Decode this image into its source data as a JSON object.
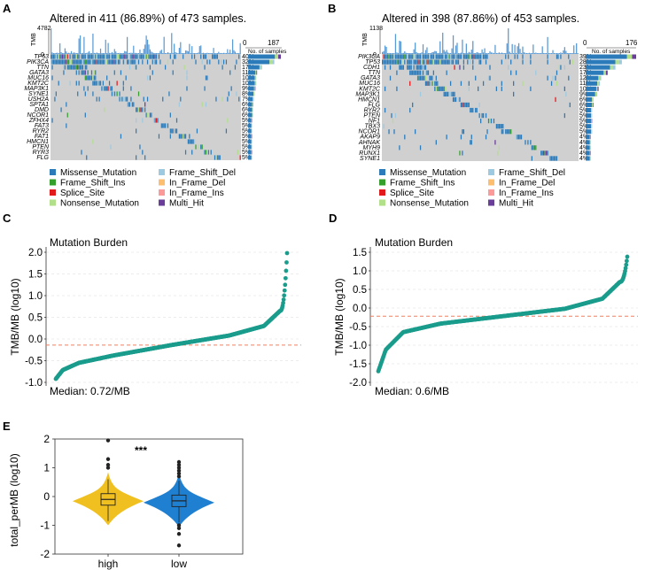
{
  "panels": {
    "A": {
      "label": "A",
      "title": "Altered in 411 (86.89%) of 473 samples.",
      "tmb_label": "TMB",
      "tmb_max": "4782",
      "tmb_min": "0",
      "bar_axis_min": "0",
      "bar_axis_max": "187",
      "bar_axis_label": "No. of samples",
      "genes": [
        "TP53",
        "PIK3CA",
        "TTN",
        "GATA3",
        "MUC16",
        "KMT2C",
        "MAP3K1",
        "SYNE1",
        "USH2A",
        "SPTA1",
        "DMD",
        "NCOR1",
        "ZFHX4",
        "FAT3",
        "RYR2",
        "FAT1",
        "HMCN1",
        "PTEN",
        "RYR3",
        "FLG"
      ],
      "gene_percent": [
        "40%",
        "32%",
        "17%",
        "11%",
        "10%",
        "10%",
        "9%",
        "8%",
        "7%",
        "6%",
        "6%",
        "6%",
        "5%",
        "5%",
        "5%",
        "5%",
        "5%",
        "5%",
        "5%",
        "5%"
      ],
      "legend": [
        "Missense_Mutation",
        "Frame_Shift_Del",
        "Frame_Shift_Ins",
        "In_Frame_Del",
        "Splice_Site",
        "In_Frame_Ins",
        "Nonsense_Mutation",
        "Multi_Hit"
      ]
    },
    "B": {
      "label": "B",
      "title": "Altered in 398 (87.86%) of 453 samples.",
      "tmb_label": "TMB",
      "tmb_max": "1138",
      "tmb_min": "0",
      "bar_axis_min": "0",
      "bar_axis_max": "176",
      "bar_axis_label": "No. of samples",
      "genes": [
        "PIK3CA",
        "TP53",
        "CDH1",
        "TTN",
        "GATA3",
        "MUC16",
        "KMT2C",
        "MAP3K1",
        "HMCN1",
        "FLG",
        "RYR2",
        "PTEN",
        "NF1",
        "TBX3",
        "NCOR1",
        "AKAP9",
        "AHNAK",
        "MYH9",
        "RUNX1",
        "SYNE1"
      ],
      "gene_percent": [
        "39%",
        "28%",
        "23%",
        "17%",
        "12%",
        "11%",
        "10%",
        "9%",
        "6%",
        "6%",
        "5%",
        "5%",
        "5%",
        "5%",
        "5%",
        "4%",
        "4%",
        "4%",
        "4%",
        "4%"
      ],
      "legend": [
        "Missense_Mutation",
        "Frame_Shift_Del",
        "Frame_Shift_Ins",
        "In_Frame_Del",
        "Splice_Site",
        "In_Frame_Ins",
        "Nonsense_Mutation",
        "Multi_Hit"
      ]
    },
    "C": {
      "label": "C",
      "subtitle": "Mutation Burden",
      "ylabel": "TMB/MB (log10)",
      "median_text": "Median: 0.72/MB"
    },
    "D": {
      "label": "D",
      "subtitle": "Mutation Burden",
      "ylabel": "TMB/MB (log10)",
      "median_text": "Median: 0.6/MB"
    },
    "E": {
      "label": "E",
      "ylabel": "total_perMB (log10)",
      "significance": "***"
    }
  },
  "legend_colors": {
    "Missense_Mutation": "#2b7bba",
    "Frame_Shift_Del": "#9ecae1",
    "Frame_Shift_Ins": "#33a02c",
    "In_Frame_Del": "#fdbf6f",
    "Splice_Site": "#e31a1c",
    "In_Frame_Ins": "#fb9a99",
    "Nonsense_Mutation": "#b2df8a",
    "Multi_Hit": "#6a3d9a"
  },
  "colors": {
    "scatter": "#1a9c8c",
    "median_line": "#f08060",
    "violin_high": "#f0c020",
    "violin_low": "#1f7fd0",
    "grid_bg": "#d0d0d0"
  },
  "chart_data": [
    {
      "type": "scatter",
      "id": "C",
      "title": "Mutation Burden",
      "xlabel": "",
      "ylabel": "TMB/MB (log10)",
      "ylim": [
        -1.0,
        2.0
      ],
      "yticks": [
        "2.0",
        "1.5",
        "1.0",
        "0.5",
        "0.0",
        "-0.5",
        "-1.0"
      ],
      "yticks_values": [
        2.0,
        1.5,
        1.0,
        0.5,
        0.0,
        -0.5,
        -1.0
      ],
      "median_log10": -0.14,
      "median_label": "Median: 0.72/MB",
      "n_points": 473,
      "sorted_profile": {
        "min": -0.92,
        "q10": -0.55,
        "q25": -0.38,
        "q50": -0.14,
        "q75": 0.08,
        "q90": 0.3,
        "q97": 0.65,
        "max": 1.98
      }
    },
    {
      "type": "scatter",
      "id": "D",
      "title": "Mutation Burden",
      "xlabel": "",
      "ylabel": "TMB/MB (log10)",
      "ylim": [
        -2.0,
        1.5
      ],
      "yticks": [
        "1.5",
        "1.0",
        "0.5",
        "0.0",
        "-0.5",
        "-1.0",
        "-1.5",
        "-2.0"
      ],
      "yticks_values": [
        1.5,
        1.0,
        0.5,
        0.0,
        -0.5,
        -1.0,
        -1.5,
        -2.0
      ],
      "median_log10": -0.22,
      "median_label": "Median: 0.6/MB",
      "n_points": 453,
      "sorted_profile": {
        "min": -1.7,
        "q10": -0.65,
        "q25": -0.42,
        "q50": -0.22,
        "q75": -0.02,
        "q90": 0.25,
        "q97": 0.7,
        "max": 1.38
      }
    },
    {
      "type": "violin",
      "id": "E",
      "ylabel": "total_perMB (log10)",
      "ylim": [
        -2.0,
        2.0
      ],
      "yticks": [
        "2",
        "1",
        "0",
        "-1",
        "-2"
      ],
      "yticks_values": [
        2,
        1,
        0,
        -1,
        -2
      ],
      "categories": [
        "high",
        "low"
      ],
      "series": [
        {
          "name": "high",
          "median": -0.1,
          "q1": -0.3,
          "q3": 0.1,
          "whisker_low": -0.85,
          "whisker_high": 0.6,
          "outliers": [
            1.0,
            1.1,
            1.3,
            1.95
          ]
        },
        {
          "name": "low",
          "median": -0.15,
          "q1": -0.35,
          "q3": 0.05,
          "whisker_low": -0.9,
          "whisker_high": 0.55,
          "outliers": [
            0.7,
            0.8,
            0.9,
            1.0,
            1.1,
            1.2,
            -1.0,
            -1.1,
            -1.3,
            -1.7
          ]
        }
      ],
      "annotation": "***"
    }
  ]
}
